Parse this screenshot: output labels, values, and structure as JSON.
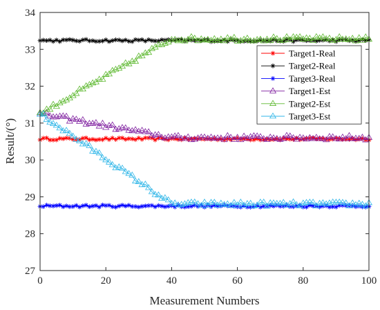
{
  "chart_data": {
    "type": "line",
    "title": "",
    "xlabel": "Measurement Numbers",
    "ylabel": "Result/(°)",
    "xlim": [
      0,
      100
    ],
    "ylim": [
      27,
      34
    ],
    "xticks": [
      "0",
      "20",
      "40",
      "60",
      "80",
      "100"
    ],
    "yticks": [
      "27",
      "28",
      "29",
      "30",
      "31",
      "32",
      "33",
      "34"
    ],
    "grid": false,
    "legend_position": "top-right",
    "series": [
      {
        "name": "Target1-Real",
        "color": "#ff0000",
        "marker": "asterisk",
        "pattern": "constant",
        "start": 30.57,
        "end": 30.57,
        "noise": 0.03
      },
      {
        "name": "Target2-Real",
        "color": "#000000",
        "marker": "asterisk",
        "pattern": "constant",
        "start": 33.24,
        "end": 33.24,
        "noise": 0.03
      },
      {
        "name": "Target3-Real",
        "color": "#0000ff",
        "marker": "asterisk",
        "pattern": "constant",
        "start": 28.75,
        "end": 28.75,
        "noise": 0.03
      },
      {
        "name": "Target1-Est",
        "color": "#7f1f9f",
        "marker": "triangle",
        "pattern": "converge",
        "start": 31.25,
        "converge_at": 40,
        "end": 30.6,
        "noise": 0.06
      },
      {
        "name": "Target2-Est",
        "color": "#5cb82e",
        "marker": "triangle",
        "pattern": "converge",
        "start": 31.25,
        "converge_at": 40,
        "end": 33.28,
        "noise": 0.06
      },
      {
        "name": "Target3-Est",
        "color": "#2fb6e8",
        "marker": "triangle",
        "pattern": "converge",
        "start": 31.25,
        "converge_at": 40,
        "end": 28.8,
        "noise": 0.06
      }
    ],
    "x_points": 101
  }
}
